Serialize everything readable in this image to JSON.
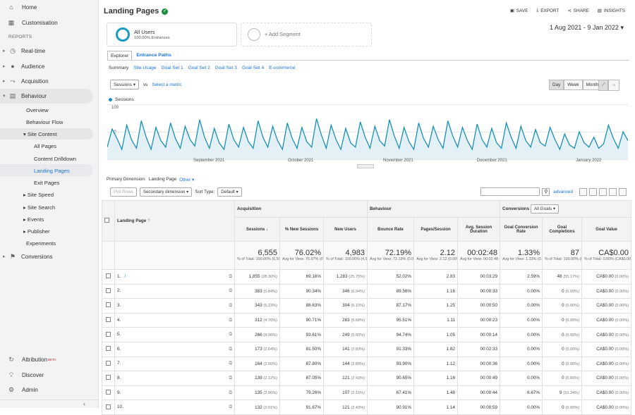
{
  "nav": {
    "home": "Home",
    "custom": "Customisation",
    "reports": "REPORTS",
    "realtime": "Real-time",
    "audience": "Audience",
    "acquisition": "Acquisition",
    "behaviour": "Behaviour",
    "overview": "Overview",
    "flow": "Behaviour Flow",
    "site_content": "Site Content",
    "all_pages": "All Pages",
    "drilldown": "Content Drilldown",
    "landing": "Landing Pages",
    "exit": "Exit Pages",
    "speed": "Site Speed",
    "search": "Site Search",
    "events": "Events",
    "publisher": "Publisher",
    "experiments": "Experiments",
    "conversions": "Conversions",
    "attribution": "Attribution",
    "beta": "BETA",
    "discover": "Discover",
    "admin": "Admin"
  },
  "header": {
    "title": "Landing Pages",
    "save": "SAVE",
    "export": "EXPORT",
    "share": "SHARE",
    "insights": "INSIGHTS",
    "dates": "1 Aug 2021 - 9 Jan 2022"
  },
  "segments": {
    "name": "All Users",
    "sub": "100.00% Entrances",
    "add": "+ Add Segment"
  },
  "tabs": {
    "explorer": "Explorer",
    "entrance": "Entrance Paths"
  },
  "subtabs": [
    "Summary",
    "Site Usage",
    "Goal Set 1",
    "Goal Set 2",
    "Goal Set 3",
    "Goal Set 4",
    "E-commerce"
  ],
  "controls": {
    "metric": "Sessions",
    "vs": "vs",
    "select": "Select a metric",
    "day": "Day",
    "week": "Week",
    "month": "Month"
  },
  "chart_data": {
    "type": "line",
    "series": [
      {
        "name": "Sessions",
        "values": [
          22,
          55,
          38,
          18,
          62,
          35,
          20,
          70,
          40,
          18,
          58,
          34,
          22,
          66,
          38,
          20,
          60,
          36,
          24,
          72,
          40,
          20,
          56,
          30,
          18,
          64,
          36,
          22,
          58,
          32,
          20,
          70,
          40,
          22,
          60,
          34,
          18,
          66,
          38,
          20,
          58,
          32,
          22,
          74,
          44,
          20,
          62,
          36,
          18,
          56,
          30,
          22,
          68,
          40,
          20,
          60,
          34,
          24,
          72,
          42,
          20,
          58,
          32,
          18,
          66,
          38,
          22,
          60,
          36,
          20,
          70,
          42,
          22,
          58,
          34,
          18,
          64,
          36,
          22,
          56,
          30,
          20,
          66,
          40,
          20,
          60,
          34,
          22,
          54,
          30,
          24,
          58,
          36,
          18,
          46,
          26,
          20,
          50,
          30,
          22,
          40,
          20,
          28,
          62,
          38,
          20,
          50,
          34
        ]
      }
    ],
    "ytick": [
      "100",
      "50"
    ],
    "xticks": [
      "September 2021",
      "October 2021",
      "November 2021",
      "December 2021",
      "January 2022"
    ],
    "ylim": [
      0,
      100
    ]
  },
  "primary": {
    "label": "Primary Dimension:",
    "value": "Landing Page",
    "other": "Other"
  },
  "toolbar": {
    "plot": "Plot Rows",
    "secondary": "Secondary dimension",
    "sort": "Sort Type:",
    "default": "Default",
    "advanced": "advanced"
  },
  "table": {
    "groups": {
      "acq": "Acquisition",
      "beh": "Behaviour",
      "conv": "Conversions",
      "goals": "All Goals"
    },
    "cols": [
      "Landing Page",
      "Sessions",
      "% New Sessions",
      "New Users",
      "Bounce Rate",
      "Pages/Session",
      "Avg. Session Duration",
      "Goal Conversion Rate",
      "Goal Completions",
      "Goal Value"
    ],
    "totals": [
      {
        "v": "6,555",
        "s": "% of Total: 100.00% (6,555)"
      },
      {
        "v": "76.02%",
        "s": "Avg for View: 75.97% (0.06%)"
      },
      {
        "v": "4,983",
        "s": "% of Total: 100.06% (4,980)"
      },
      {
        "v": "72.19%",
        "s": "Avg for View: 72.19% (0.00%)"
      },
      {
        "v": "2.12",
        "s": "Avg for View: 2.12 (0.00%)"
      },
      {
        "v": "00:02:48",
        "s": "Avg for View: 00:02:48 (0.00%)"
      },
      {
        "v": "1.33%",
        "s": "Avg for View: 1.33% (0.00%)"
      },
      {
        "v": "87",
        "s": "% of Total: 100.00% (87)"
      },
      {
        "v": "CA$0.00",
        "s": "% of Total: 0.00% (CA$0.00)"
      }
    ],
    "rows": [
      [
        "1.",
        "/",
        "1,855",
        "(28.30%)",
        "69.16%",
        "1,283",
        "(25.75%)",
        "52.02%",
        "2.83",
        "00:03:29",
        "2.59%",
        "48",
        "(55.17%)",
        "CA$0.00",
        "(0.00%)"
      ],
      [
        "2.",
        "",
        "383",
        "(5.84%)",
        "90.34%",
        "346",
        "(6.94%)",
        "89.56%",
        "1.16",
        "00:00:33",
        "0.00%",
        "0",
        "(0.00%)",
        "CA$0.00",
        "(0.00%)"
      ],
      [
        "3.",
        "",
        "343",
        "(5.23%)",
        "88.63%",
        "304",
        "(6.10%)",
        "87.17%",
        "1.25",
        "00:00:50",
        "0.00%",
        "0",
        "(0.00%)",
        "CA$0.00",
        "(0.00%)"
      ],
      [
        "4.",
        "",
        "312",
        "(4.76%)",
        "90.71%",
        "283",
        "(5.68%)",
        "95.51%",
        "1.11",
        "00:00:23",
        "0.00%",
        "0",
        "(0.00%)",
        "CA$0.00",
        "(0.00%)"
      ],
      [
        "5.",
        "",
        "266",
        "(4.06%)",
        "93.61%",
        "249",
        "(5.00%)",
        "94.74%",
        "1.05",
        "00:00:14",
        "0.00%",
        "0",
        "(0.00%)",
        "CA$0.00",
        "(0.00%)"
      ],
      [
        "6.",
        "",
        "173",
        "(2.64%)",
        "81.50%",
        "141",
        "(2.83%)",
        "91.33%",
        "1.82",
        "00:02:33",
        "0.00%",
        "0",
        "(0.00%)",
        "CA$0.00",
        "(0.00%)"
      ],
      [
        "7.",
        "",
        "164",
        "(2.50%)",
        "87.80%",
        "144",
        "(2.89%)",
        "93.90%",
        "1.12",
        "00:00:36",
        "0.00%",
        "0",
        "(0.00%)",
        "CA$0.00",
        "(0.00%)"
      ],
      [
        "8.",
        "",
        "139",
        "(2.12%)",
        "87.05%",
        "121",
        "(2.43%)",
        "90.65%",
        "1.16",
        "00:00:49",
        "0.00%",
        "0",
        "(0.00%)",
        "CA$0.00",
        "(0.00%)"
      ],
      [
        "9.",
        "",
        "135",
        "(2.06%)",
        "79.26%",
        "107",
        "(2.15%)",
        "67.41%",
        "1.48",
        "00:00:44",
        "6.67%",
        "9",
        "(10.34%)",
        "CA$0.00",
        "(0.00%)"
      ],
      [
        "10.",
        "",
        "132",
        "(2.01%)",
        "91.67%",
        "121",
        "(2.43%)",
        "90.91%",
        "1.14",
        "00:00:59",
        "0.00%",
        "0",
        "(0.00%)",
        "CA$0.00",
        "(0.00%)"
      ]
    ]
  }
}
